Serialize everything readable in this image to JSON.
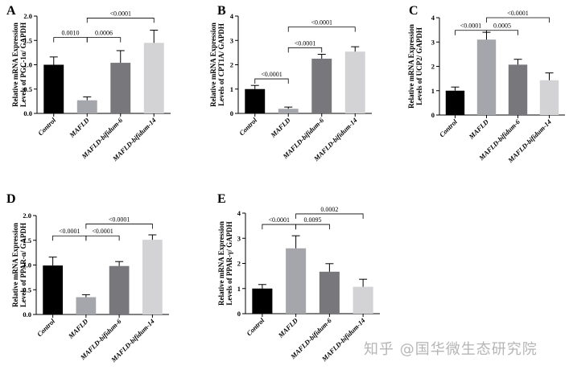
{
  "panel_colors": [
    "#000000",
    "#a5a6ab",
    "#78787c",
    "#d3d3d6"
  ],
  "watermark": "知乎 @国华微生态研究院",
  "chart_data": [
    {
      "panel": "A",
      "type": "bar",
      "categories": [
        "Control",
        "MAFLD",
        "MAFLD-bifidum-6",
        "MAFLD-bifidum-14"
      ],
      "values": [
        1.0,
        0.27,
        1.04,
        1.45
      ],
      "errors": [
        0.16,
        0.07,
        0.25,
        0.26
      ],
      "ylabel": [
        "Relative mRNA Expression",
        "Levels of PGC-1α/ GAPDH"
      ],
      "ylim": [
        0,
        2.0
      ],
      "yticks": [
        0.0,
        0.5,
        1.0,
        1.5,
        2.0
      ],
      "ytick_labels": [
        "0.0",
        "0.5",
        "1.0",
        "1.5",
        "2.0"
      ],
      "comparisons": [
        {
          "from": 0,
          "to": 1,
          "label": "0.0010",
          "y": 1.56
        },
        {
          "from": 1,
          "to": 2,
          "label": "0.0006",
          "y": 1.56
        },
        {
          "from": 1,
          "to": 3,
          "label": "<0.0001",
          "y": 1.96
        }
      ]
    },
    {
      "panel": "B",
      "type": "bar",
      "categories": [
        "Control",
        "MAFLD",
        "MAFLD-bifidum-6",
        "MAFLD-bifidum-14"
      ],
      "values": [
        1.0,
        0.19,
        2.25,
        2.54
      ],
      "errors": [
        0.15,
        0.07,
        0.18,
        0.2
      ],
      "ylabel": [
        "Relative mRNA Expression",
        "Levels of CPT1A/ GAPDH"
      ],
      "ylim": [
        0,
        4
      ],
      "yticks": [
        0,
        1,
        2,
        3,
        4
      ],
      "ytick_labels": [
        "0",
        "1",
        "2",
        "3",
        "4"
      ],
      "comparisons": [
        {
          "from": 0,
          "to": 1,
          "label": "<0.0001",
          "y": 1.42
        },
        {
          "from": 1,
          "to": 2,
          "label": "<0.0001",
          "y": 2.7
        },
        {
          "from": 1,
          "to": 3,
          "label": "<0.0001",
          "y": 3.55
        }
      ]
    },
    {
      "panel": "C",
      "type": "bar",
      "categories": [
        "Control",
        "MAFLD",
        "MAFLD-bifidum-6",
        "MAFLD-bifidum-14"
      ],
      "values": [
        1.0,
        3.1,
        2.07,
        1.43
      ],
      "errors": [
        0.15,
        0.3,
        0.22,
        0.3
      ],
      "ylabel": [
        "Relative mRNA Expression",
        "Levels of UCP2/ GAPDH"
      ],
      "ylim": [
        0,
        4
      ],
      "yticks": [
        0,
        1,
        2,
        3,
        4
      ],
      "ytick_labels": [
        "0",
        "1",
        "2",
        "3",
        "4"
      ],
      "comparisons": [
        {
          "from": 0,
          "to": 1,
          "label": "<0.0001",
          "y": 3.48
        },
        {
          "from": 1,
          "to": 2,
          "label": "0.0005",
          "y": 3.48
        },
        {
          "from": 1,
          "to": 3,
          "label": "<0.0001",
          "y": 4.0
        }
      ]
    },
    {
      "panel": "D",
      "type": "bar",
      "categories": [
        "Control",
        "MAFLD",
        "MAFLD-bifidum-6",
        "MAFLD-bifidum-14"
      ],
      "values": [
        0.99,
        0.35,
        0.98,
        1.51
      ],
      "errors": [
        0.17,
        0.05,
        0.09,
        0.1
      ],
      "ylabel": [
        "Relative mRNA Expression",
        "Levels of  PPAR-α/ GAPDH"
      ],
      "ylim": [
        0,
        2.0
      ],
      "yticks": [
        0.0,
        0.5,
        1.0,
        1.5,
        2.0
      ],
      "ytick_labels": [
        "0.0",
        "0.5",
        "1.0",
        "1.5",
        "2.0"
      ],
      "comparisons": [
        {
          "from": 0,
          "to": 1,
          "label": "<0.0001",
          "y": 1.59
        },
        {
          "from": 1,
          "to": 2,
          "label": "<0.0001",
          "y": 1.59
        },
        {
          "from": 1,
          "to": 3,
          "label": "<0.0001",
          "y": 1.83
        }
      ]
    },
    {
      "panel": "E",
      "type": "bar",
      "categories": [
        "Control",
        "MAFLD",
        "MAFLD-bifidum-6",
        "MAFLD-bifidum-14"
      ],
      "values": [
        1.0,
        2.6,
        1.67,
        1.07
      ],
      "errors": [
        0.16,
        0.5,
        0.32,
        0.3
      ],
      "ylabel": [
        "Relative mRNA Expression",
        "Levels of  PPAR-γ/ GAPDH"
      ],
      "ylim": [
        0,
        4
      ],
      "yticks": [
        0,
        1,
        2,
        3,
        4
      ],
      "ytick_labels": [
        "0",
        "1",
        "2",
        "3",
        "4"
      ],
      "comparisons": [
        {
          "from": 0,
          "to": 1,
          "label": "<0.0001",
          "y": 3.55
        },
        {
          "from": 1,
          "to": 2,
          "label": "0.0095",
          "y": 3.55
        },
        {
          "from": 1,
          "to": 3,
          "label": "0.0002",
          "y": 3.97
        }
      ]
    }
  ]
}
